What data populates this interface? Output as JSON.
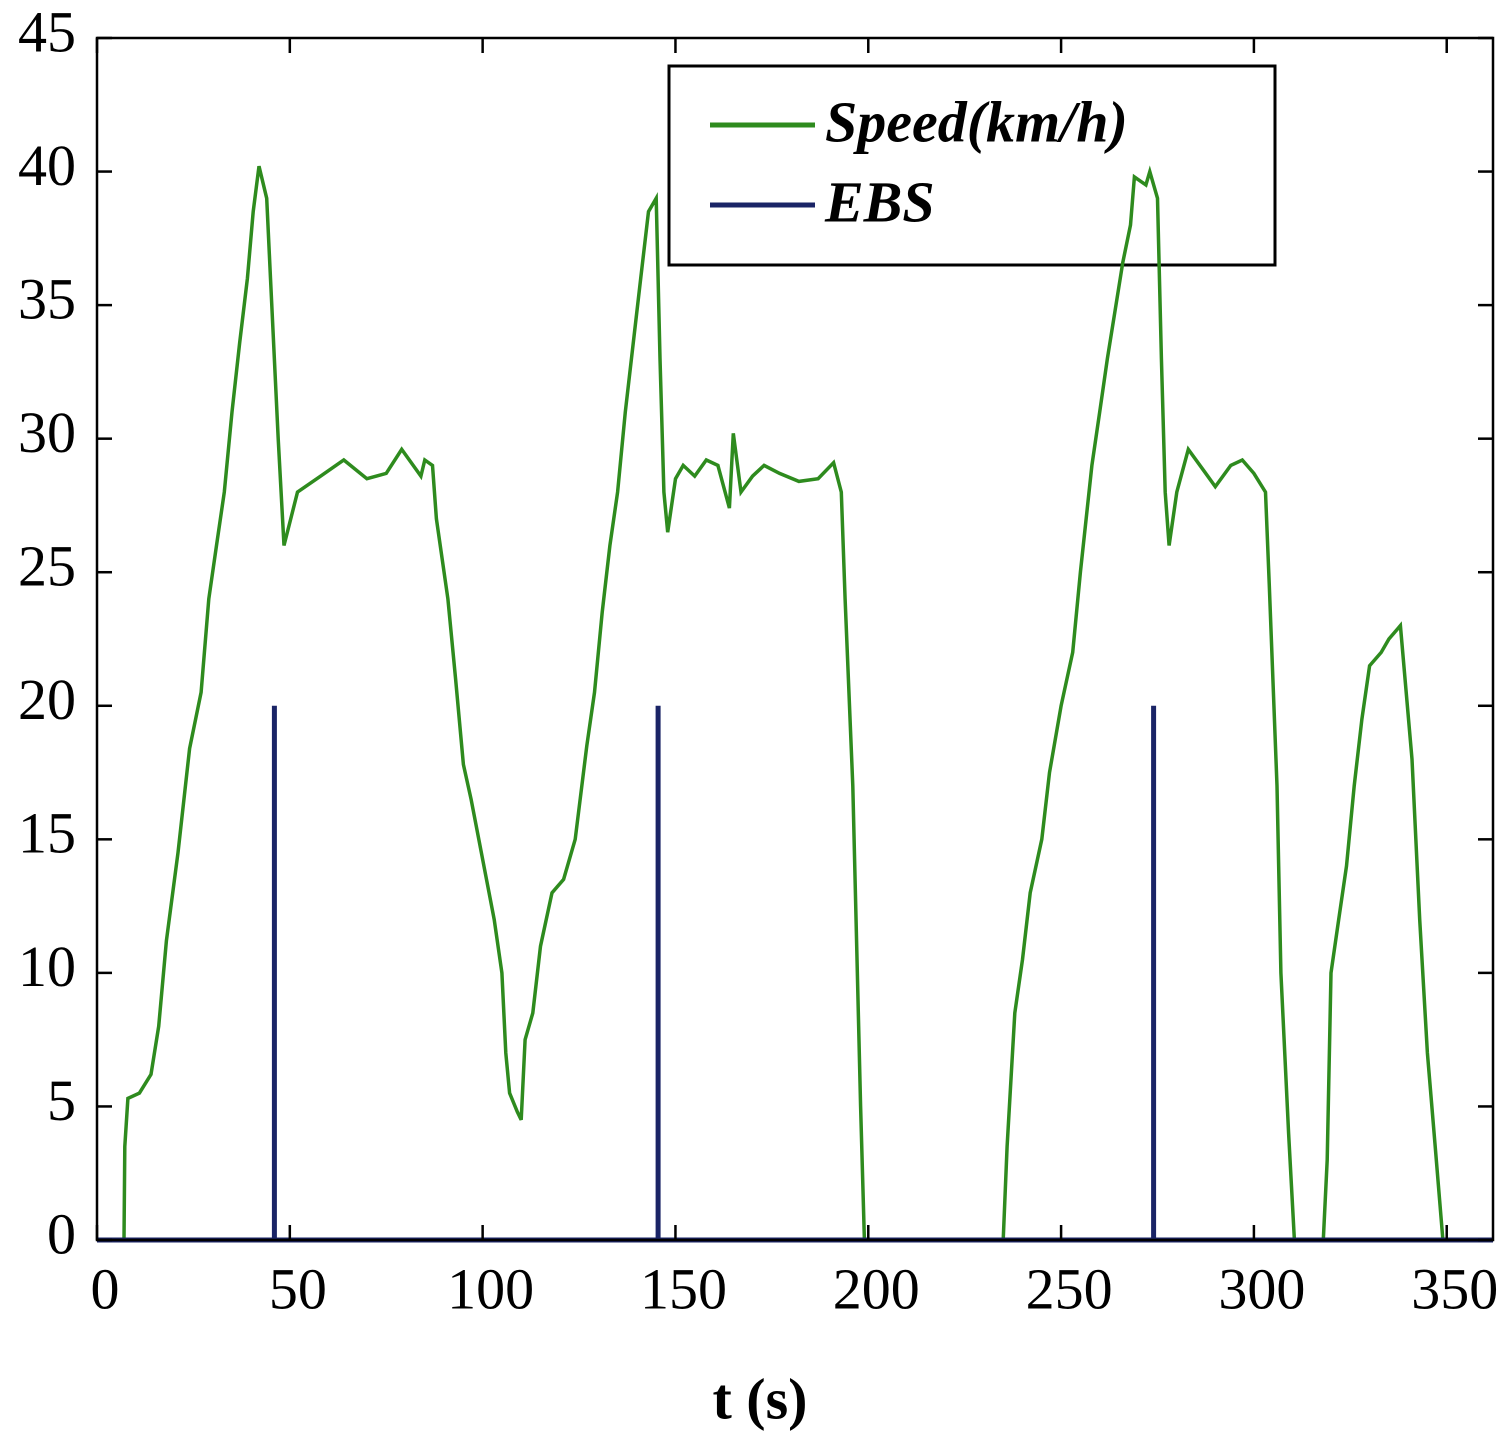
{
  "chart_data": {
    "type": "line",
    "xlabel": "t (s)",
    "xlim": [
      0,
      362
    ],
    "xticks": [
      0,
      50,
      100,
      150,
      200,
      250,
      300,
      350
    ],
    "ylim": [
      0,
      45
    ],
    "yticks": [
      0,
      5,
      10,
      15,
      20,
      25,
      30,
      35,
      40,
      45
    ],
    "grid": false,
    "legend": "upper right",
    "series": [
      {
        "name": "Speed(km/h)",
        "color": "#2e8b1e",
        "x": [
          0,
          7,
          7.2,
          8,
          11,
          14,
          16,
          18,
          21,
          24,
          27,
          29,
          31,
          33,
          35,
          37,
          39,
          40.5,
          42,
          44,
          45,
          47,
          48.5,
          52,
          58,
          64,
          70,
          75,
          79,
          84,
          85,
          87,
          88,
          91,
          93,
          95,
          97,
          99,
          101,
          103,
          105,
          106,
          107,
          109,
          110,
          111,
          113,
          115,
          118,
          121,
          124,
          127,
          129,
          131,
          133,
          135,
          137,
          139,
          141,
          143,
          145,
          146,
          147,
          148,
          150,
          152,
          155,
          158,
          161,
          164,
          165,
          167,
          170,
          173,
          177,
          182,
          187,
          191,
          193,
          194,
          196,
          197,
          198,
          199,
          235,
          236,
          238,
          240,
          242,
          245,
          247,
          250,
          253,
          255,
          258,
          260,
          262,
          264,
          266,
          268,
          269,
          272,
          273,
          275,
          276,
          277,
          278,
          280,
          283,
          287,
          290,
          294,
          297,
          300,
          303,
          304,
          306,
          307,
          309,
          310.5,
          318,
          319,
          320,
          322,
          324,
          326,
          328,
          330,
          333,
          335,
          338,
          341,
          343,
          345,
          347,
          349
        ],
        "values": [
          0,
          0,
          3.5,
          5.3,
          5.5,
          6.2,
          8,
          11.2,
          14.5,
          18.4,
          20.5,
          24,
          26,
          28,
          31,
          33.6,
          36,
          38.5,
          40.2,
          39,
          36,
          30,
          26,
          28,
          28.6,
          29.2,
          28.5,
          28.7,
          29.6,
          28.6,
          29.2,
          29,
          27,
          24,
          21,
          17.8,
          16.5,
          15,
          13.5,
          12,
          10,
          7,
          5.5,
          4.8,
          4.5,
          7.5,
          8.5,
          11,
          13,
          13.5,
          15,
          18.5,
          20.5,
          23.5,
          26,
          28,
          31,
          33.5,
          36,
          38.5,
          39,
          33,
          28,
          26.5,
          28.5,
          29,
          28.6,
          29.2,
          29,
          27.4,
          30.2,
          28,
          28.6,
          29,
          28.7,
          28.4,
          28.5,
          29.1,
          28,
          24,
          17,
          11,
          5,
          0,
          0,
          3.5,
          8.5,
          10.5,
          13,
          15,
          17.5,
          20,
          22,
          25,
          29,
          31,
          33,
          34.8,
          36.6,
          38,
          39.8,
          39.5,
          40,
          39,
          33,
          28,
          26,
          28,
          29.6,
          28.8,
          28.2,
          29,
          29.2,
          28.7,
          28,
          24.5,
          17,
          10,
          4,
          0,
          0,
          3,
          10,
          12,
          14,
          17,
          19.5,
          21.5,
          22,
          22.5,
          23,
          18,
          12,
          7,
          3.5,
          0
        ]
      },
      {
        "name": "EBS",
        "color": "#1a2466",
        "x": [
          0,
          46,
          46,
          46,
          145.5,
          145.5,
          145.5,
          274,
          274,
          274,
          362
        ],
        "values": [
          0,
          0,
          20,
          0,
          0,
          20,
          0,
          0,
          20,
          0,
          0
        ]
      }
    ]
  }
}
